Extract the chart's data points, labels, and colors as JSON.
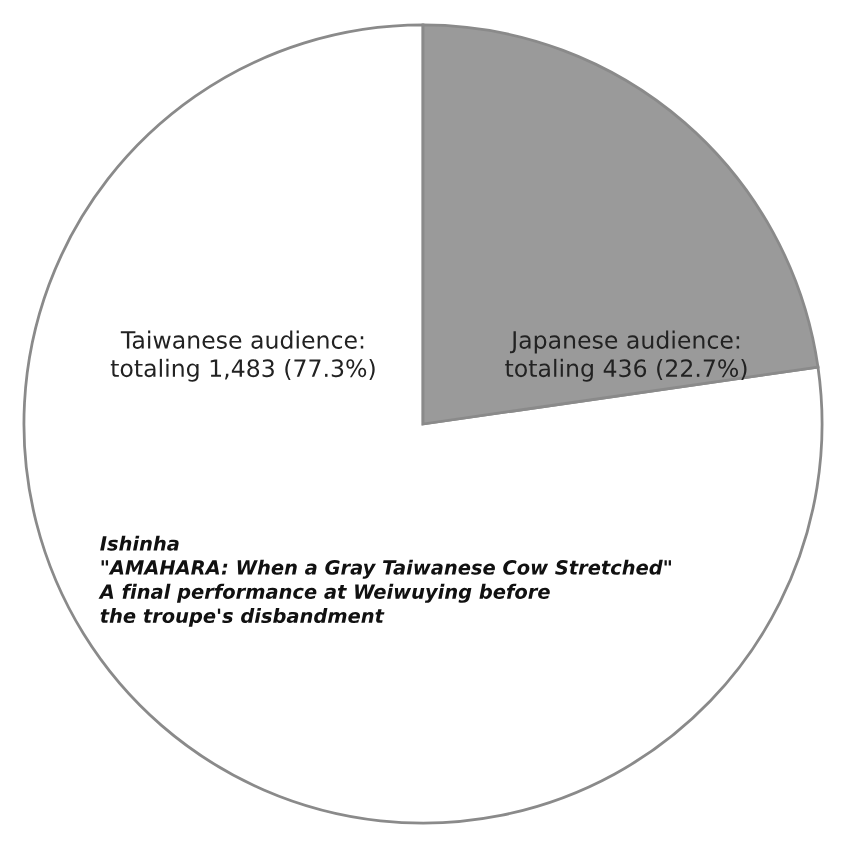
{
  "chart_data": {
    "type": "pie",
    "categories": [
      "Taiwanese audience:\ntotaling 1,483 (77.3%)",
      "Japanese audience:\ntotaling 436 (22.7%)"
    ],
    "values": [
      1483,
      436
    ],
    "colors": [
      "#ffffff",
      "#9a9a9a"
    ],
    "annotations": [
      "Ishinha\n\"AMAHARA: When a Gray Taiwanese Cow Stretched\"\nA final performance at Weiwuying before\nthe troupe's disbandment"
    ],
    "legend": false
  }
}
